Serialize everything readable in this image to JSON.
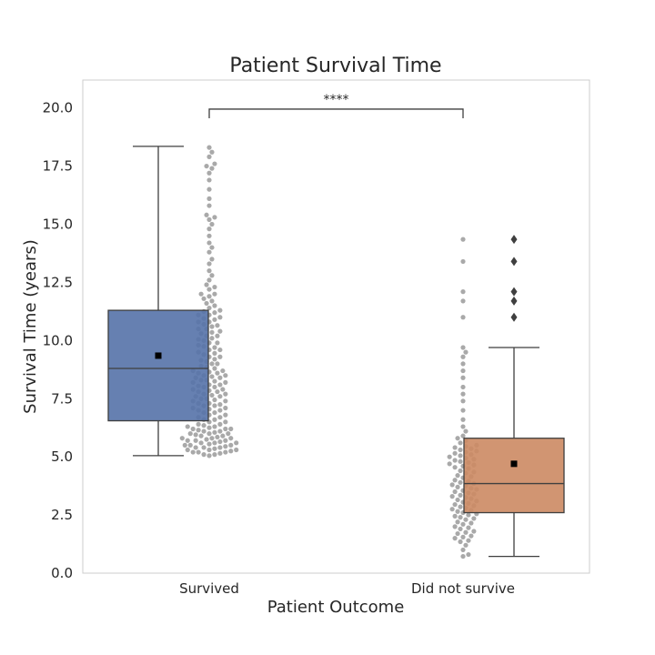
{
  "chart_data": {
    "type": "box",
    "title": "Patient Survival Time",
    "xlabel": "Patient Outcome",
    "ylabel": "Survival Time (years)",
    "ylim": [
      0,
      21.2
    ],
    "yticks": [
      "0.0",
      "2.5",
      "5.0",
      "7.5",
      "10.0",
      "12.5",
      "15.0",
      "17.5",
      "20.0"
    ],
    "grid": false,
    "categories": [
      "Survived",
      "Did not survive"
    ],
    "boxes": [
      {
        "category": "Survived",
        "color": "#5572a8",
        "min": 5.05,
        "q1": 6.55,
        "median": 8.8,
        "q3": 11.3,
        "max": 18.35,
        "mean": 9.35,
        "outliers": []
      },
      {
        "category": "Did not survive",
        "color": "#cc8963",
        "min": 0.72,
        "q1": 2.6,
        "median": 3.85,
        "q3": 5.8,
        "max": 9.7,
        "mean": 4.7,
        "outliers": [
          11.0,
          11.7,
          12.1,
          13.4,
          14.35
        ]
      }
    ],
    "swarm": [
      {
        "category": "Survived",
        "values": [
          18.3,
          18.1,
          17.9,
          17.6,
          17.5,
          17.4,
          17.2,
          16.9,
          16.5,
          16.1,
          15.8,
          15.4,
          15.3,
          15.2,
          15.0,
          14.8,
          14.5,
          14.2,
          14.0,
          13.8,
          13.5,
          13.3,
          13.0,
          12.8,
          12.6,
          12.4,
          12.2,
          12.0,
          11.9,
          11.8,
          11.6,
          11.5,
          11.3,
          11.2,
          11.1,
          11.0,
          10.9,
          10.8,
          10.7,
          10.6,
          10.5,
          10.4,
          10.3,
          10.2,
          10.1,
          10.0,
          9.9,
          9.8,
          9.7,
          9.6,
          9.5,
          9.4,
          9.3,
          9.2,
          9.1,
          9.0,
          8.9,
          8.8,
          8.7,
          8.6,
          8.5,
          8.4,
          8.3,
          8.2,
          8.1,
          8.0,
          7.9,
          7.8,
          7.7,
          7.6,
          7.5,
          7.4,
          7.3,
          7.2,
          7.1,
          7.0,
          6.9,
          6.8,
          6.7,
          6.6,
          6.5,
          6.4,
          6.3,
          6.2,
          6.1,
          6.0,
          5.9,
          5.8,
          5.7,
          5.6,
          5.5,
          5.4,
          5.3,
          5.2,
          5.1,
          5.05,
          6.1,
          6.2,
          6.05,
          5.95,
          5.85,
          5.75,
          5.65,
          5.55,
          5.45,
          5.35,
          5.25,
          5.15,
          6.0,
          5.9,
          5.8,
          5.7,
          5.6,
          5.5,
          5.4,
          5.3,
          5.2,
          5.1,
          6.3,
          6.4,
          6.5,
          6.6,
          6.7,
          6.8,
          6.9,
          7.0,
          7.1,
          7.2,
          7.3,
          7.4,
          7.5,
          7.6,
          7.7,
          7.8,
          7.9,
          8.0,
          8.1,
          8.2,
          8.3,
          8.4,
          8.5,
          8.6,
          8.7,
          9.0,
          9.3,
          9.6,
          9.9,
          10.2,
          10.5,
          10.8,
          11.1,
          11.4,
          11.7,
          12.0,
          12.3,
          6.15,
          6.25,
          6.35,
          7.05,
          7.25,
          7.45,
          7.65,
          7.85,
          8.05,
          8.25,
          8.45,
          8.65,
          8.85,
          9.15,
          9.45,
          9.75,
          10.05,
          10.35,
          10.65,
          10.95,
          11.25,
          5.2,
          5.3,
          5.4,
          5.5,
          5.6,
          5.7,
          5.8,
          6.0,
          6.2
        ]
      },
      {
        "category": "Did not survive",
        "values": [
          14.35,
          13.4,
          12.1,
          11.7,
          11.0,
          9.7,
          9.5,
          9.3,
          9.0,
          8.7,
          8.4,
          8.0,
          7.7,
          7.4,
          7.0,
          6.6,
          6.3,
          6.1,
          5.9,
          5.8,
          5.7,
          5.6,
          5.5,
          5.4,
          5.3,
          5.2,
          5.1,
          5.0,
          4.9,
          4.8,
          4.7,
          4.6,
          4.5,
          4.4,
          4.3,
          4.2,
          4.1,
          4.0,
          3.9,
          3.8,
          3.7,
          3.6,
          3.5,
          3.4,
          3.3,
          3.2,
          3.1,
          3.0,
          2.9,
          2.8,
          2.7,
          2.6,
          2.5,
          2.4,
          2.3,
          2.2,
          2.1,
          2.0,
          1.9,
          1.8,
          1.7,
          1.6,
          1.5,
          1.4,
          1.2,
          1.0,
          0.8,
          0.72,
          5.35,
          5.25,
          5.15,
          4.95,
          4.75,
          4.55,
          4.35,
          4.15,
          3.95,
          3.75,
          3.55,
          3.35,
          3.15,
          2.95,
          2.75,
          2.55,
          2.35,
          2.15,
          1.95,
          1.75,
          1.55,
          1.35,
          5.45,
          5.05,
          4.85,
          4.65,
          3.85,
          3.45,
          3.25,
          3.05,
          2.65,
          2.45,
          2.85,
          3.65
        ]
      }
    ],
    "annotation": {
      "text": "****",
      "from": "Survived",
      "to": "Did not survive",
      "y": 19.95
    }
  }
}
